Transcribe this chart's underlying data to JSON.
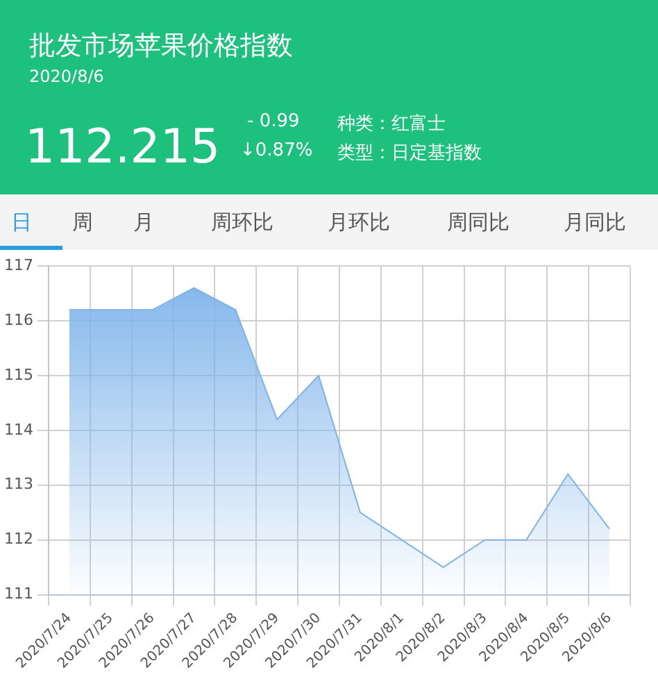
{
  "chart_data": {
    "type": "area",
    "title": "批发市场苹果价格指数",
    "subtitle": "2020/8/6",
    "annotations": [
      "112.215",
      "- 0.99",
      "↓0.87%",
      "种类：红富士",
      "类型：日定基指数",
      "日",
      "周",
      "月",
      "周环比",
      "月环比",
      "周同比",
      "月同比"
    ],
    "categories": [
      "2020/7/24",
      "2020/7/25",
      "2020/7/26",
      "2020/7/27",
      "2020/7/28",
      "2020/7/29",
      "2020/7/30",
      "2020/7/31",
      "2020/8/1",
      "2020/8/2",
      "2020/8/3",
      "2020/8/4",
      "2020/8/5",
      "2020/8/6"
    ],
    "series": [
      {
        "color": "#7eb3ea",
        "values": [
          116.2,
          116.2,
          116.2,
          116.6,
          116.2,
          114.2,
          115.0,
          112.5,
          112.0,
          111.5,
          112.0,
          112.0,
          113.2,
          112.2
        ]
      }
    ],
    "ylim": [
      111,
      117
    ],
    "yticks": [
      111,
      112,
      113,
      114,
      115,
      116,
      117
    ],
    "grid": true,
    "legend": false
  }
}
